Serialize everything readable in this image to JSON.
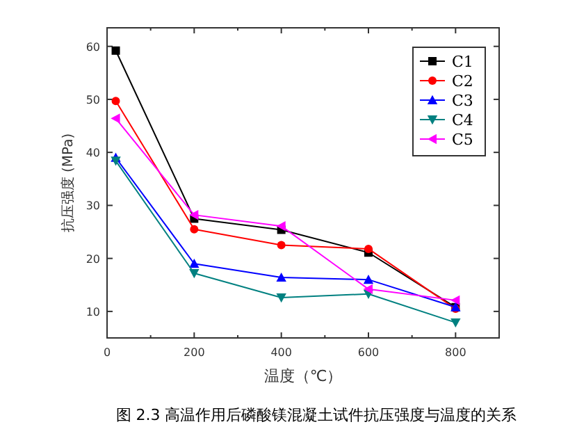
{
  "chart_data": {
    "type": "line",
    "xlabel": "温度（℃）",
    "ylabel": "抗压强度 (MPa)",
    "annotations": [
      "图 2.3 高温作用后磷酸镁混凝土试件抗压强度与温度的关系"
    ],
    "x": [
      20,
      200,
      400,
      600,
      800
    ],
    "xlim": [
      0,
      900
    ],
    "xticks": [
      0,
      {
        "value": 100,
        "label": null
      },
      200,
      {
        "value": 300,
        "label": null
      },
      400,
      {
        "value": 500,
        "label": null
      },
      600,
      {
        "value": 700,
        "label": null
      },
      800,
      {
        "value": 900,
        "label": null
      }
    ],
    "ylim": [
      5,
      63.5
    ],
    "yticks": [
      10,
      20,
      30,
      40,
      50,
      60
    ],
    "grid": false,
    "legend": "top right",
    "line_style": "solid",
    "series": [
      {
        "name": "C1",
        "color": "#000000",
        "marker": "square",
        "values": [
          59.2,
          27.5,
          25.4,
          21.1,
          10.8
        ]
      },
      {
        "name": "C2",
        "color": "#ff0000",
        "marker": "circle",
        "values": [
          49.7,
          25.5,
          22.5,
          21.8,
          10.5
        ]
      },
      {
        "name": "C3",
        "color": "#0000ff",
        "marker": "triangle",
        "values": [
          39,
          19,
          16.4,
          16,
          10.8
        ]
      },
      {
        "name": "C4",
        "color": "#008080",
        "marker": "triangle-down",
        "values": [
          38.4,
          17.2,
          12.6,
          13.3,
          7.9
        ]
      },
      {
        "name": "C5",
        "color": "#ff00ff",
        "marker": "triangle-left",
        "values": [
          46.4,
          28.2,
          26.1,
          14.2,
          12.1
        ]
      }
    ]
  }
}
